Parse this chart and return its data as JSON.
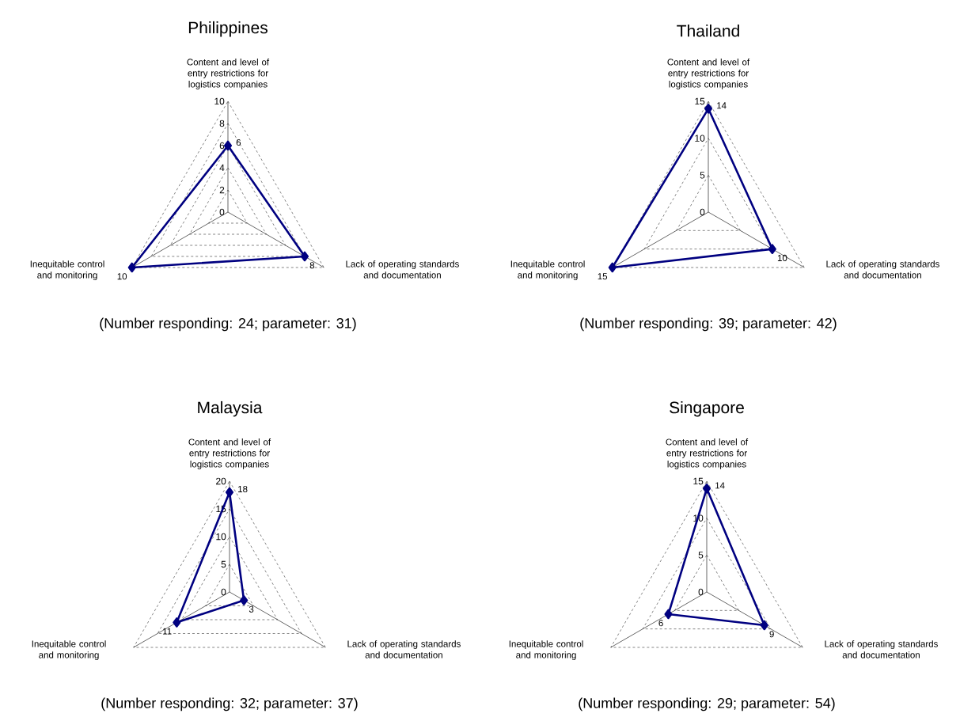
{
  "chart_data": [
    {
      "type": "radar",
      "title": "Philippines",
      "categories": [
        "Content and level of entry restrictions for logistics companies",
        "Lack of operating standards and documentation",
        "Inequitable control and monitoring"
      ],
      "series": [
        {
          "color": "#000080",
          "values": [
            6,
            8,
            10
          ]
        }
      ],
      "ylim": [
        0,
        10
      ],
      "yticks": [
        0,
        2,
        4,
        6,
        8,
        10
      ],
      "grid": true,
      "marker": "diamond",
      "data_labels": true,
      "annotations": [
        "(Number responding: 24; parameter: 31)"
      ]
    },
    {
      "type": "radar",
      "title": "Thailand",
      "categories": [
        "Content and level of entry restrictions for logistics companies",
        "Lack of operating standards and documentation",
        "Inequitable control and monitoring"
      ],
      "series": [
        {
          "color": "#000080",
          "values": [
            14,
            10,
            15
          ]
        }
      ],
      "ylim": [
        0,
        15
      ],
      "yticks": [
        0,
        5,
        10,
        15
      ],
      "grid": true,
      "marker": "diamond",
      "data_labels": true,
      "annotations": [
        "(Number responding: 39; parameter: 42)"
      ]
    },
    {
      "type": "radar",
      "title": "Malaysia",
      "categories": [
        "Content and level of entry restrictions for logistics companies",
        "Lack of operating standards and documentation",
        "Inequitable control and monitoring"
      ],
      "series": [
        {
          "color": "#000080",
          "values": [
            18,
            3,
            11
          ]
        }
      ],
      "ylim": [
        0,
        20
      ],
      "yticks": [
        0,
        5,
        10,
        15,
        20
      ],
      "grid": true,
      "marker": "diamond",
      "data_labels": true,
      "annotations": [
        "(Number responding: 32; parameter: 37)"
      ]
    },
    {
      "type": "radar",
      "title": "Singapore",
      "categories": [
        "Content and level of entry restrictions for logistics companies",
        "Lack of operating standards and documentation",
        "Inequitable control and monitoring"
      ],
      "series": [
        {
          "color": "#000080",
          "values": [
            14,
            9,
            6
          ]
        }
      ],
      "ylim": [
        0,
        15
      ],
      "yticks": [
        0,
        5,
        10,
        15
      ],
      "grid": true,
      "marker": "diamond",
      "data_labels": true,
      "annotations": [
        "(Number responding: 29; parameter: 54)"
      ]
    }
  ]
}
